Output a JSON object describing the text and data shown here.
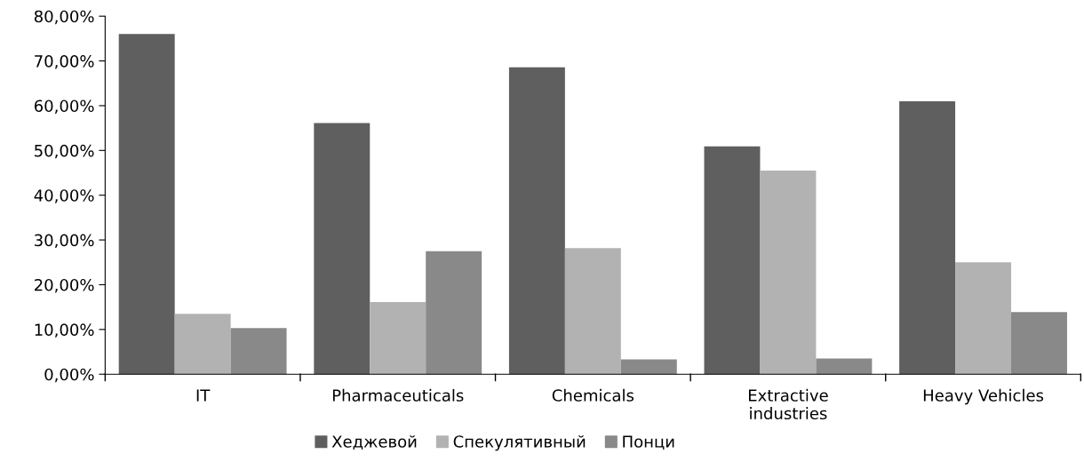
{
  "chart_data": {
    "type": "bar",
    "categories": [
      "IT",
      "Pharmaceuticals",
      "Chemicals",
      "Extractive\nindustries",
      "Heavy Vehicles"
    ],
    "series": [
      {
        "name": "Хеджевой",
        "color": "#5f5f5f",
        "values": [
          76.0,
          56.1,
          68.6,
          50.9,
          61.0
        ]
      },
      {
        "name": "Спекулятивный",
        "color": "#b2b2b2",
        "values": [
          13.5,
          16.1,
          28.2,
          45.5,
          25.0
        ]
      },
      {
        "name": "Понци",
        "color": "#898989",
        "values": [
          10.3,
          27.5,
          3.3,
          3.5,
          13.9
        ]
      }
    ],
    "ylim": [
      0,
      80
    ],
    "yticks": [
      {
        "value": 0,
        "label": "0,00%"
      },
      {
        "value": 10,
        "label": "10,00%"
      },
      {
        "value": 20,
        "label": "20,00%"
      },
      {
        "value": 30,
        "label": "30,00%"
      },
      {
        "value": 40,
        "label": "40,00%"
      },
      {
        "value": 50,
        "label": "50,00%"
      },
      {
        "value": 60,
        "label": "60,00%"
      },
      {
        "value": 70,
        "label": "70,00%"
      },
      {
        "value": 80,
        "label": "80,00%"
      }
    ],
    "grid": false,
    "legend": "bottom"
  }
}
